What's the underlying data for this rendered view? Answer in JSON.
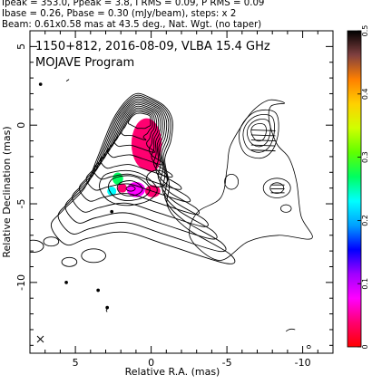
{
  "header_lines": [
    "Ipeak = 353.0, Ppeak = 3.8, I RMS = 0.09, P RMS = 0.09",
    "Ibase = 0.26, Pbase = 0.30 (mJy/beam), steps: x 2",
    "Beam: 0.61x0.58 mas at 43.5 deg., Nat. Wgt. (no taper)"
  ],
  "chart_data": {
    "type": "heatmap",
    "title_line1": "1150+812, 2016-08-09, VLBA 15.4 GHz",
    "title_line2": "MOJAVE Program",
    "xlabel": "Relative R.A. (mas)",
    "ylabel": "Relative Declination (mas)",
    "xlim": [
      8,
      -12
    ],
    "ylim": [
      -14.5,
      6
    ],
    "x_ticks": [
      5,
      0,
      -5,
      -10
    ],
    "x_tick_labels": [
      "5",
      "0",
      "-5",
      "-10"
    ],
    "y_ticks": [
      5,
      0,
      -5,
      -10
    ],
    "y_tick_labels": [
      "5",
      "0",
      "-5",
      "-10"
    ],
    "colorbar": {
      "range": [
        0,
        0.5
      ],
      "ticks": [
        0,
        0.1,
        0.2,
        0.3,
        0.4,
        0.5
      ],
      "tick_labels": [
        "0",
        "0.1",
        "0.2",
        "0.3",
        "0.4",
        "0.5"
      ],
      "colors": [
        "#ff0000",
        "#ff0070",
        "#ff00ff",
        "#a000ff",
        "#0000ff",
        "#00a0ff",
        "#00ffff",
        "#00ff60",
        "#60ff00",
        "#d0ff00",
        "#ffd000",
        "#ff8000",
        "#804040",
        "#000000"
      ]
    },
    "ipeak_mjy_per_beam": 353.0,
    "ppeak_mjy_per_beam": 3.8,
    "i_rms": 0.09,
    "p_rms": 0.09,
    "ibase": 0.26,
    "pbase": 0.3,
    "contour_step": 2,
    "beam": {
      "major_mas": 0.61,
      "minor_mas": 0.58,
      "pa_deg": 43.5
    },
    "polarization_blobs": [
      {
        "ra": 0.3,
        "dec": -1.2,
        "srx": 1.0,
        "sry": 1.7,
        "level": 0.05
      },
      {
        "ra": 0.0,
        "dec": -2.2,
        "srx": 0.6,
        "sry": 0.8,
        "level": 0.03
      },
      {
        "ra": 1.0,
        "dec": -4.1,
        "srx": 0.6,
        "sry": 0.5,
        "level": 0.06
      },
      {
        "ra": -0.1,
        "dec": -4.2,
        "srx": 0.5,
        "sry": 0.4,
        "level": 0.05
      },
      {
        "ra": 2.2,
        "dec": -3.4,
        "srx": 0.35,
        "sry": 0.4,
        "level": 0.28
      },
      {
        "ra": 2.6,
        "dec": -4.2,
        "srx": 0.3,
        "sry": 0.3,
        "level": 0.22
      },
      {
        "ra": 1.9,
        "dec": -4.0,
        "srx": 0.3,
        "sry": 0.3,
        "level": 0.05
      }
    ]
  }
}
